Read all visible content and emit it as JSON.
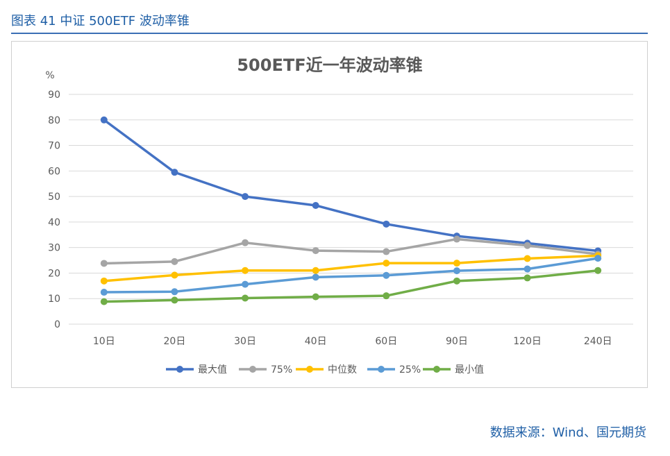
{
  "figure": {
    "label": "图表 41 中证 500ETF 波动率锥",
    "source": "数据来源：Wind、国元期货"
  },
  "chart_data": {
    "type": "line",
    "title": "500ETF近一年波动率锥",
    "ylabel": "%",
    "xlabel": "",
    "ylim": [
      0,
      90
    ],
    "yticks": [
      0,
      10,
      20,
      30,
      40,
      50,
      60,
      70,
      80,
      90
    ],
    "categories": [
      "10日",
      "20日",
      "30日",
      "40日",
      "60日",
      "90日",
      "120日",
      "240日"
    ],
    "grid": true,
    "legend_position": "bottom",
    "series": [
      {
        "name": "最大值",
        "color": "#4472c4",
        "values": [
          80,
          59.5,
          50,
          46.5,
          39.2,
          34.5,
          31.7,
          28.7
        ]
      },
      {
        "name": "75%",
        "color": "#a5a5a5",
        "values": [
          23.8,
          24.5,
          31.9,
          28.8,
          28.4,
          33.3,
          30.8,
          27.4
        ]
      },
      {
        "name": "中位数",
        "color": "#ffc000",
        "values": [
          16.9,
          19.2,
          21,
          21,
          23.9,
          23.9,
          25.7,
          26.8
        ]
      },
      {
        "name": "25%",
        "color": "#5b9bd5",
        "values": [
          12.5,
          12.7,
          15.6,
          18.4,
          19.1,
          20.9,
          21.6,
          25.8
        ]
      },
      {
        "name": "最小值",
        "color": "#70ad47",
        "values": [
          8.8,
          9.4,
          10.2,
          10.7,
          11.1,
          16.9,
          18.1,
          21
        ]
      }
    ]
  }
}
